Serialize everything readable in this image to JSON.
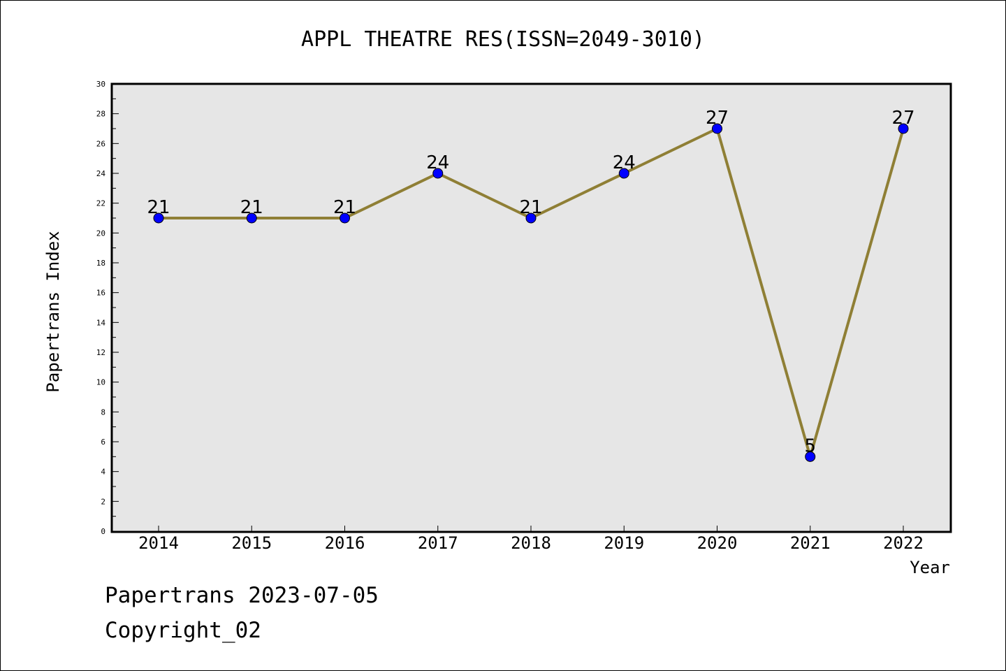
{
  "chart_data": {
    "type": "line",
    "title": "APPL THEATRE RES(ISSN=2049-3010)",
    "xlabel": "Year",
    "ylabel": "Papertrans Index",
    "categories": [
      "2014",
      "2015",
      "2016",
      "2017",
      "2018",
      "2019",
      "2020",
      "2021",
      "2022"
    ],
    "series": [
      {
        "values": [
          21,
          21,
          21,
          24,
          21,
          24,
          27,
          5,
          27
        ]
      }
    ],
    "data_labels": [
      "21",
      "21",
      "21",
      "24",
      "21",
      "24",
      "27",
      "5",
      "27"
    ],
    "ylim": [
      0,
      30
    ],
    "y_ticks": [
      "0",
      "2",
      "4",
      "6",
      "8",
      "10",
      "12",
      "14",
      "16",
      "18",
      "20",
      "22",
      "24",
      "26",
      "28",
      "30"
    ],
    "grid": false,
    "colors": {
      "line": "#8f7f35",
      "marker": "#0000ff",
      "plot_background": "#e6e6e6"
    }
  },
  "footer": {
    "line1": "Papertrans 2023-07-05",
    "line2": "Copyright_02"
  }
}
